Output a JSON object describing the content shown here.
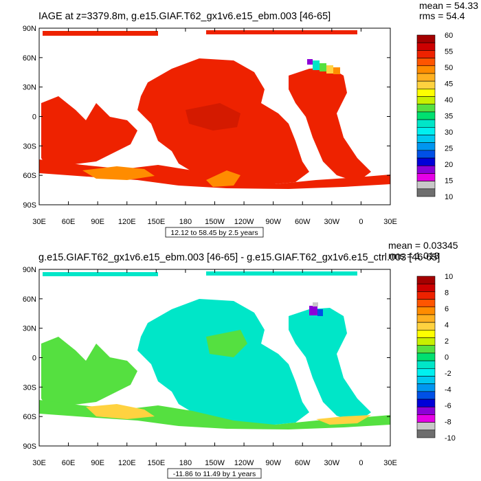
{
  "chart_data": [
    {
      "type": "heatmap",
      "title": "IAGE at z=3379.8m, g.e15.GIAF.T62_gx1v6.e15_ebm.003 [46-65]",
      "stats": [
        "mean = 54.33",
        "rms = 54.4"
      ],
      "x_ticks": [
        "30E",
        "60E",
        "90E",
        "120E",
        "150E",
        "180",
        "150W",
        "120W",
        "90W",
        "60W",
        "30W",
        "0",
        "30E"
      ],
      "y_ticks": [
        "90N",
        "60N",
        "30N",
        "0",
        "30S",
        "60S",
        "90S"
      ],
      "contour_info": "12.12 to 58.45 by 2.5 years",
      "colorbar": {
        "labels": [
          "60",
          "55",
          "50",
          "45",
          "40",
          "35",
          "30",
          "25",
          "20",
          "15",
          "10"
        ],
        "colors": [
          "#a40000",
          "#cc0000",
          "#ee2200",
          "#ff5500",
          "#ff8c00",
          "#ffb020",
          "#ffd240",
          "#ffff00",
          "#c8f000",
          "#55e040",
          "#00e070",
          "#00e6c8",
          "#00f0f0",
          "#00c8f0",
          "#0096f0",
          "#0050e6",
          "#0000d8",
          "#8c00d8",
          "#e600e6",
          "#c8c8c8",
          "#6e6e6e"
        ]
      }
    },
    {
      "type": "heatmap",
      "title": "g.e15.GIAF.T62_gx1v6.e15_ebm.003 [46-65] - g.e15.GIAF.T62_gx1v6.e15_ctrl.003 [46-65]",
      "stats": [
        "mean = 0.03345",
        "rms = 1.018"
      ],
      "x_ticks": [
        "30E",
        "60E",
        "90E",
        "120E",
        "150E",
        "180",
        "150W",
        "120W",
        "90W",
        "60W",
        "30W",
        "0",
        "30E"
      ],
      "y_ticks": [
        "90N",
        "60N",
        "30N",
        "0",
        "30S",
        "60S",
        "90S"
      ],
      "contour_info": "-11.86 to 11.49 by 1 years",
      "colorbar": {
        "labels": [
          "10",
          "8",
          "6",
          "4",
          "2",
          "0",
          "-2",
          "-4",
          "-6",
          "-8",
          "-10"
        ],
        "colors": [
          "#a40000",
          "#cc0000",
          "#ee2200",
          "#ff5500",
          "#ff8c00",
          "#ffb020",
          "#ffd240",
          "#ffff00",
          "#c8f000",
          "#55e040",
          "#00e070",
          "#00e6c8",
          "#00f0f0",
          "#00c8f0",
          "#0096f0",
          "#0050e6",
          "#0000d8",
          "#8c00d8",
          "#e600e6",
          "#c8c8c8",
          "#6e6e6e"
        ]
      }
    }
  ],
  "colors": {
    "age_field": "#ee2200",
    "age_dark": "#d41a00",
    "age_orange": "#ff8c00",
    "diff_field": "#00e6c8",
    "diff_green": "#55e040",
    "diff_yellow": "#ffd240",
    "land": "#ffffff"
  }
}
